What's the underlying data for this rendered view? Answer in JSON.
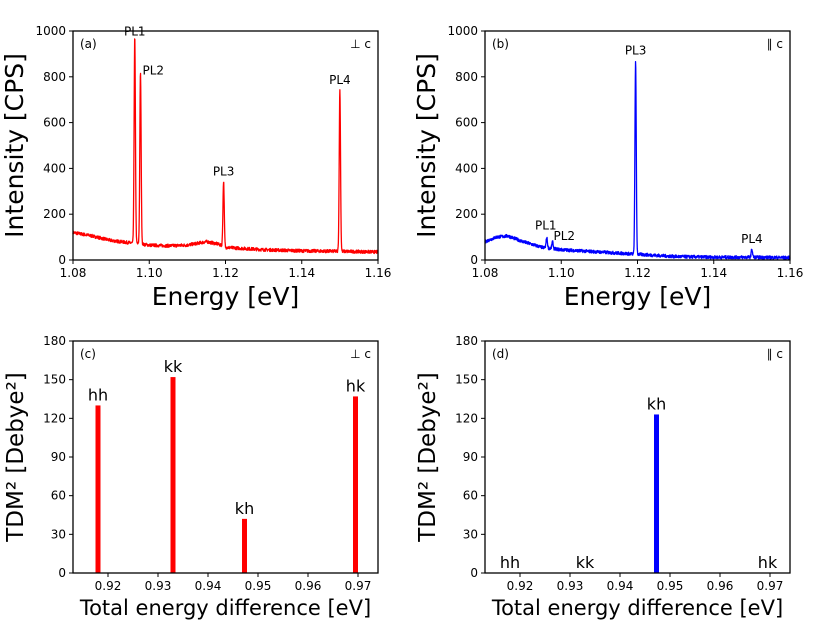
{
  "chart_data": [
    {
      "id": "a",
      "type": "line",
      "panel_label": "(a)",
      "polarization": "⊥ c",
      "xlabel": "Energy [eV]",
      "ylabel": "Intensity [CPS]",
      "xlim": [
        1.08,
        1.16
      ],
      "ylim": [
        0,
        1000
      ],
      "xticks": [
        "1.08",
        "1.10",
        "1.12",
        "1.14",
        "1.16"
      ],
      "yticks": [
        "0",
        "200",
        "400",
        "600",
        "800",
        "1000"
      ],
      "color": "#ff0000",
      "baseline": [
        [
          1.08,
          120
        ],
        [
          1.085,
          105
        ],
        [
          1.09,
          85
        ],
        [
          1.095,
          75
        ],
        [
          1.1,
          65
        ],
        [
          1.105,
          62
        ],
        [
          1.11,
          65
        ],
        [
          1.115,
          80
        ],
        [
          1.118,
          70
        ],
        [
          1.12,
          55
        ],
        [
          1.13,
          45
        ],
        [
          1.14,
          40
        ],
        [
          1.15,
          38
        ],
        [
          1.16,
          35
        ]
      ],
      "peaks": [
        {
          "label": "PL1",
          "x": 1.0962,
          "height": 900
        },
        {
          "label": "PL2",
          "x": 1.0977,
          "height": 750
        },
        {
          "label": "PL3",
          "x": 1.1195,
          "height": 285
        },
        {
          "label": "PL4",
          "x": 1.15,
          "height": 705
        }
      ]
    },
    {
      "id": "b",
      "type": "line",
      "panel_label": "(b)",
      "polarization": "∥ c",
      "xlabel": "Energy [eV]",
      "ylabel": "Intensity [CPS]",
      "xlim": [
        1.08,
        1.16
      ],
      "ylim": [
        0,
        1000
      ],
      "xticks": [
        "1.08",
        "1.10",
        "1.12",
        "1.14",
        "1.16"
      ],
      "yticks": [
        "0",
        "200",
        "400",
        "600",
        "800",
        "1000"
      ],
      "color": "#0000ff",
      "baseline": [
        [
          1.08,
          80
        ],
        [
          1.083,
          100
        ],
        [
          1.086,
          105
        ],
        [
          1.09,
          80
        ],
        [
          1.095,
          55
        ],
        [
          1.1,
          45
        ],
        [
          1.11,
          35
        ],
        [
          1.12,
          25
        ],
        [
          1.13,
          15
        ],
        [
          1.14,
          12
        ],
        [
          1.15,
          12
        ],
        [
          1.16,
          10
        ]
      ],
      "peaks": [
        {
          "label": "PL1",
          "x": 1.0962,
          "height": 45
        },
        {
          "label": "PL2",
          "x": 1.0977,
          "height": 30
        },
        {
          "label": "PL3",
          "x": 1.1195,
          "height": 845
        },
        {
          "label": "PL4",
          "x": 1.15,
          "height": 35
        }
      ]
    },
    {
      "id": "c",
      "type": "bar",
      "panel_label": "(c)",
      "polarization": "⊥ c",
      "xlabel": "Total energy difference [eV]",
      "ylabel": "TDM² [Debye²]",
      "xlim": [
        0.913,
        0.974
      ],
      "ylim": [
        0,
        180
      ],
      "xticks": [
        "0.92",
        "0.93",
        "0.94",
        "0.95",
        "0.96",
        "0.97"
      ],
      "yticks": [
        "0",
        "30",
        "60",
        "90",
        "120",
        "150",
        "180"
      ],
      "color": "#ff0000",
      "bars": [
        {
          "label": "hh",
          "x": 0.918,
          "value": 130
        },
        {
          "label": "kk",
          "x": 0.933,
          "value": 152
        },
        {
          "label": "kh",
          "x": 0.9473,
          "value": 42
        },
        {
          "label": "hk",
          "x": 0.9695,
          "value": 137
        }
      ]
    },
    {
      "id": "d",
      "type": "bar",
      "panel_label": "(d)",
      "polarization": "∥ c",
      "xlabel": "Total energy difference [eV]",
      "ylabel": "TDM² [Debye²]",
      "xlim": [
        0.913,
        0.974
      ],
      "ylim": [
        0,
        180
      ],
      "xticks": [
        "0.92",
        "0.93",
        "0.94",
        "0.95",
        "0.96",
        "0.97"
      ],
      "yticks": [
        "0",
        "30",
        "60",
        "90",
        "120",
        "150",
        "180"
      ],
      "color": "#0000ff",
      "bars": [
        {
          "label": "hh",
          "x": 0.918,
          "value": 0
        },
        {
          "label": "kk",
          "x": 0.933,
          "value": 0
        },
        {
          "label": "kh",
          "x": 0.9473,
          "value": 123
        },
        {
          "label": "hk",
          "x": 0.9695,
          "value": 0
        }
      ]
    }
  ]
}
